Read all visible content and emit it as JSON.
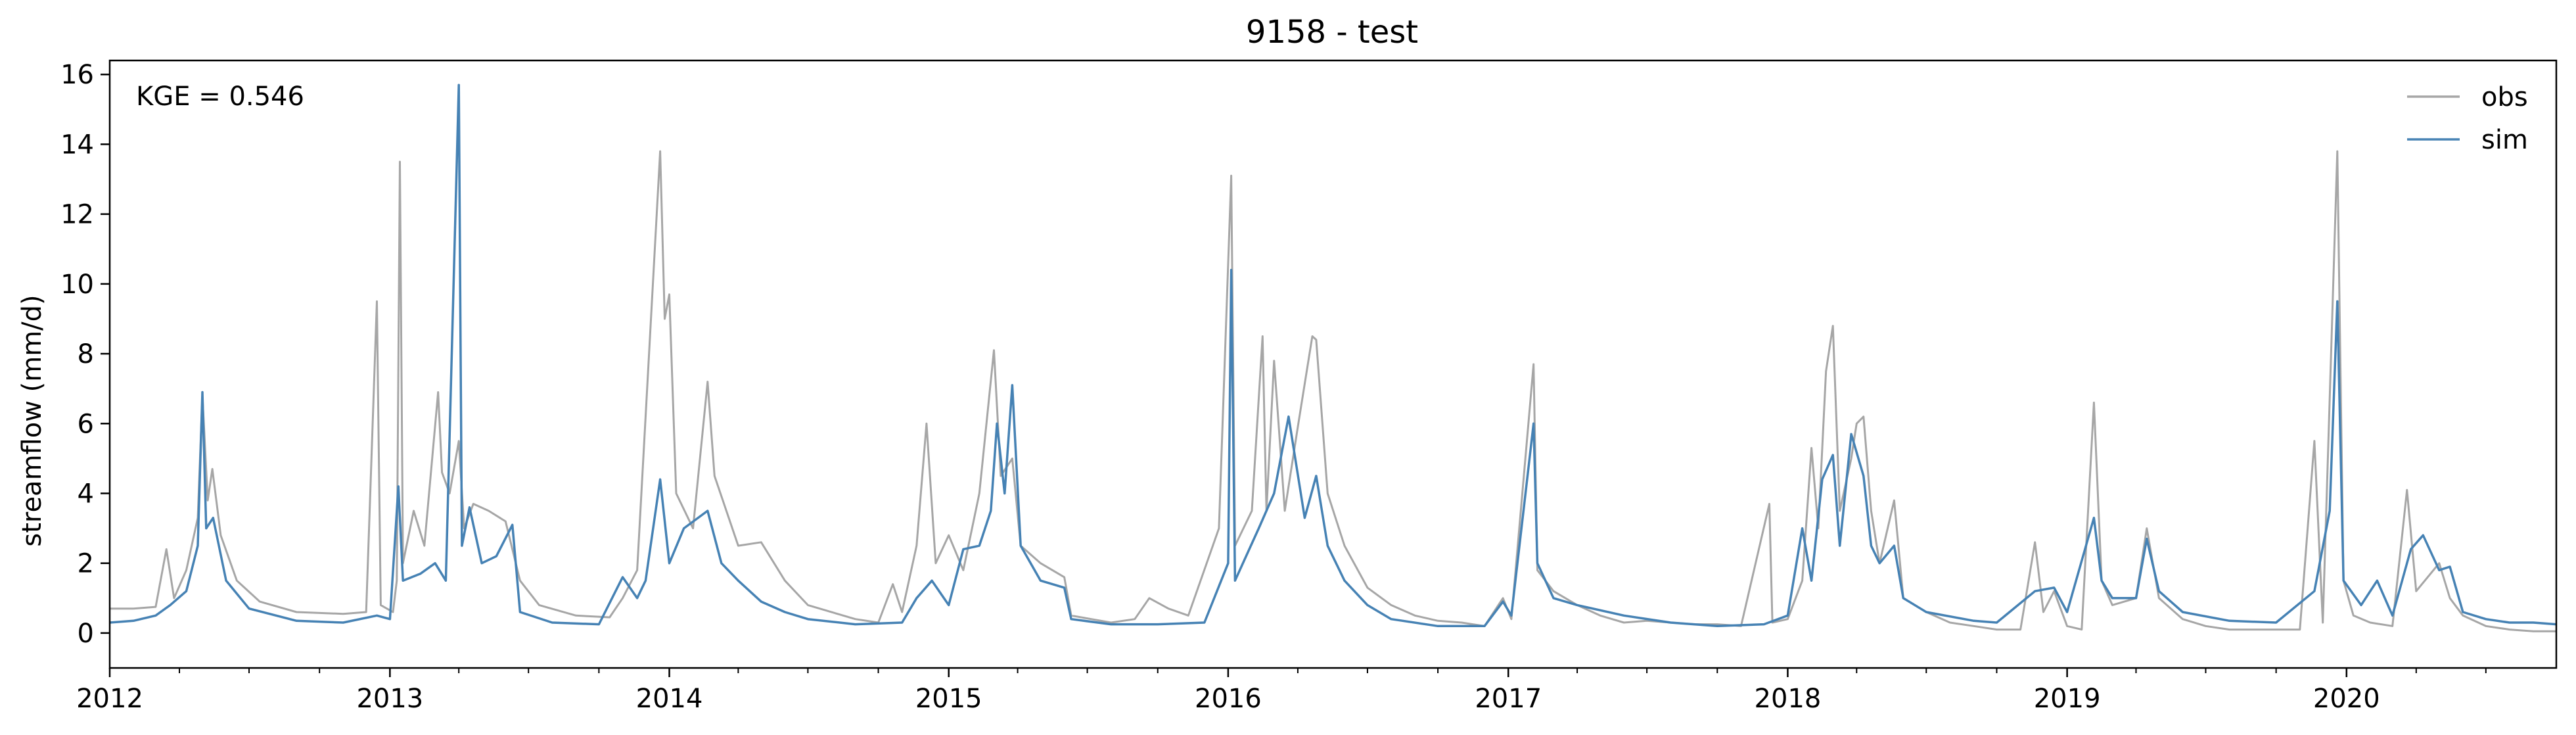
{
  "chart_data": {
    "type": "line",
    "title": "9158 - test",
    "xlabel": "",
    "ylabel": "streamflow (mm/d)",
    "annotation": "KGE = 0.546",
    "xlim": [
      "2012-01-01",
      "2020-10-01"
    ],
    "ylim": [
      -1,
      16.4
    ],
    "x_ticks": [
      "2012",
      "2013",
      "2014",
      "2015",
      "2016",
      "2017",
      "2018",
      "2019",
      "2020"
    ],
    "y_ticks": [
      "0",
      "2",
      "4",
      "6",
      "8",
      "10",
      "12",
      "14",
      "16"
    ],
    "grid": false,
    "legend_position": "top-right",
    "series": [
      {
        "name": "obs",
        "color": "#a6a6a6",
        "points": [
          [
            "2012-01-01",
            0.7
          ],
          [
            "2012-02-01",
            0.7
          ],
          [
            "2012-03-01",
            0.75
          ],
          [
            "2012-03-15",
            2.4
          ],
          [
            "2012-03-25",
            1.0
          ],
          [
            "2012-04-10",
            1.8
          ],
          [
            "2012-04-25",
            3.3
          ],
          [
            "2012-05-01",
            6.8
          ],
          [
            "2012-05-08",
            3.8
          ],
          [
            "2012-05-14",
            4.7
          ],
          [
            "2012-05-25",
            2.8
          ],
          [
            "2012-06-15",
            1.5
          ],
          [
            "2012-07-15",
            0.9
          ],
          [
            "2012-09-01",
            0.6
          ],
          [
            "2012-11-01",
            0.55
          ],
          [
            "2012-12-01",
            0.6
          ],
          [
            "2012-12-15",
            9.5
          ],
          [
            "2012-12-20",
            0.8
          ],
          [
            "2013-01-05",
            0.6
          ],
          [
            "2013-01-10",
            1.5
          ],
          [
            "2013-01-14",
            13.5
          ],
          [
            "2013-01-18",
            2.0
          ],
          [
            "2013-02-01",
            3.5
          ],
          [
            "2013-02-15",
            2.5
          ],
          [
            "2013-03-05",
            6.9
          ],
          [
            "2013-03-10",
            4.6
          ],
          [
            "2013-03-20",
            4.0
          ],
          [
            "2013-04-01",
            5.5
          ],
          [
            "2013-04-08",
            3.0
          ],
          [
            "2013-04-20",
            3.7
          ],
          [
            "2013-05-10",
            3.5
          ],
          [
            "2013-06-01",
            3.2
          ],
          [
            "2013-06-20",
            1.5
          ],
          [
            "2013-07-15",
            0.8
          ],
          [
            "2013-09-01",
            0.5
          ],
          [
            "2013-10-15",
            0.45
          ],
          [
            "2013-11-01",
            1.0
          ],
          [
            "2013-11-20",
            1.8
          ],
          [
            "2013-12-20",
            13.8
          ],
          [
            "2013-12-26",
            9.0
          ],
          [
            "2014-01-01",
            9.7
          ],
          [
            "2014-01-10",
            4.0
          ],
          [
            "2014-02-01",
            3.0
          ],
          [
            "2014-02-20",
            7.2
          ],
          [
            "2014-03-01",
            4.5
          ],
          [
            "2014-04-01",
            2.5
          ],
          [
            "2014-05-01",
            2.6
          ],
          [
            "2014-06-01",
            1.5
          ],
          [
            "2014-07-01",
            0.8
          ],
          [
            "2014-09-01",
            0.4
          ],
          [
            "2014-10-01",
            0.3
          ],
          [
            "2014-10-20",
            1.4
          ],
          [
            "2014-11-01",
            0.6
          ],
          [
            "2014-11-20",
            2.5
          ],
          [
            "2014-12-03",
            6.0
          ],
          [
            "2014-12-15",
            2.0
          ],
          [
            "2015-01-01",
            2.8
          ],
          [
            "2015-01-20",
            1.8
          ],
          [
            "2015-02-10",
            4.0
          ],
          [
            "2015-03-01",
            8.1
          ],
          [
            "2015-03-10",
            4.5
          ],
          [
            "2015-03-25",
            5.0
          ],
          [
            "2015-04-05",
            2.5
          ],
          [
            "2015-05-01",
            2.0
          ],
          [
            "2015-06-01",
            1.6
          ],
          [
            "2015-06-10",
            0.5
          ],
          [
            "2015-08-01",
            0.3
          ],
          [
            "2015-09-01",
            0.4
          ],
          [
            "2015-09-20",
            1.0
          ],
          [
            "2015-10-15",
            0.7
          ],
          [
            "2015-11-10",
            0.5
          ],
          [
            "2015-12-20",
            3.0
          ],
          [
            "2016-01-05",
            13.1
          ],
          [
            "2016-01-10",
            2.5
          ],
          [
            "2016-02-01",
            3.5
          ],
          [
            "2016-02-15",
            8.5
          ],
          [
            "2016-02-20",
            3.5
          ],
          [
            "2016-03-01",
            7.8
          ],
          [
            "2016-03-15",
            3.5
          ],
          [
            "2016-04-01",
            5.9
          ],
          [
            "2016-04-20",
            8.5
          ],
          [
            "2016-04-25",
            8.4
          ],
          [
            "2016-05-10",
            4.0
          ],
          [
            "2016-06-01",
            2.5
          ],
          [
            "2016-07-01",
            1.3
          ],
          [
            "2016-08-01",
            0.8
          ],
          [
            "2016-09-01",
            0.5
          ],
          [
            "2016-10-01",
            0.35
          ],
          [
            "2016-11-01",
            0.3
          ],
          [
            "2016-12-01",
            0.2
          ],
          [
            "2016-12-25",
            1.0
          ],
          [
            "2017-01-05",
            0.4
          ],
          [
            "2017-02-03",
            7.7
          ],
          [
            "2017-02-08",
            1.8
          ],
          [
            "2017-03-01",
            1.2
          ],
          [
            "2017-04-01",
            0.8
          ],
          [
            "2017-05-01",
            0.5
          ],
          [
            "2017-06-01",
            0.3
          ],
          [
            "2017-07-01",
            0.35
          ],
          [
            "2017-08-01",
            0.3
          ],
          [
            "2017-09-01",
            0.25
          ],
          [
            "2017-10-01",
            0.25
          ],
          [
            "2017-11-01",
            0.2
          ],
          [
            "2017-12-08",
            3.7
          ],
          [
            "2017-12-12",
            0.3
          ],
          [
            "2018-01-01",
            0.4
          ],
          [
            "2018-01-20",
            1.5
          ],
          [
            "2018-02-01",
            5.3
          ],
          [
            "2018-02-10",
            3.0
          ],
          [
            "2018-02-20",
            7.5
          ],
          [
            "2018-03-01",
            8.8
          ],
          [
            "2018-03-10",
            3.5
          ],
          [
            "2018-03-25",
            5.0
          ],
          [
            "2018-04-01",
            6.0
          ],
          [
            "2018-04-10",
            6.2
          ],
          [
            "2018-04-20",
            3.5
          ],
          [
            "2018-05-01",
            2.0
          ],
          [
            "2018-05-20",
            3.8
          ],
          [
            "2018-06-01",
            1.0
          ],
          [
            "2018-07-01",
            0.6
          ],
          [
            "2018-08-01",
            0.3
          ],
          [
            "2018-09-01",
            0.2
          ],
          [
            "2018-10-01",
            0.1
          ],
          [
            "2018-11-01",
            0.1
          ],
          [
            "2018-11-20",
            2.6
          ],
          [
            "2018-12-01",
            0.6
          ],
          [
            "2018-12-15",
            1.2
          ],
          [
            "2019-01-01",
            0.2
          ],
          [
            "2019-01-20",
            0.1
          ],
          [
            "2019-02-05",
            6.6
          ],
          [
            "2019-02-15",
            1.5
          ],
          [
            "2019-03-01",
            0.8
          ],
          [
            "2019-04-01",
            1.0
          ],
          [
            "2019-04-15",
            3.0
          ],
          [
            "2019-05-01",
            1.0
          ],
          [
            "2019-06-01",
            0.4
          ],
          [
            "2019-07-01",
            0.2
          ],
          [
            "2019-08-01",
            0.1
          ],
          [
            "2019-09-01",
            0.1
          ],
          [
            "2019-10-01",
            0.1
          ],
          [
            "2019-11-01",
            0.1
          ],
          [
            "2019-11-20",
            5.5
          ],
          [
            "2019-12-01",
            0.3
          ],
          [
            "2019-12-20",
            13.8
          ],
          [
            "2019-12-28",
            1.5
          ],
          [
            "2020-01-10",
            0.5
          ],
          [
            "2020-02-01",
            0.3
          ],
          [
            "2020-03-01",
            0.2
          ],
          [
            "2020-03-20",
            4.1
          ],
          [
            "2020-04-01",
            1.2
          ],
          [
            "2020-05-01",
            2.0
          ],
          [
            "2020-05-15",
            1.0
          ],
          [
            "2020-06-01",
            0.5
          ],
          [
            "2020-07-01",
            0.2
          ],
          [
            "2020-08-01",
            0.1
          ],
          [
            "2020-09-01",
            0.05
          ],
          [
            "2020-10-01",
            0.05
          ]
        ]
      },
      {
        "name": "sim",
        "color": "#4682b4",
        "points": [
          [
            "2012-01-01",
            0.3
          ],
          [
            "2012-02-01",
            0.35
          ],
          [
            "2012-03-01",
            0.5
          ],
          [
            "2012-03-20",
            0.8
          ],
          [
            "2012-04-10",
            1.2
          ],
          [
            "2012-04-25",
            2.5
          ],
          [
            "2012-05-01",
            6.9
          ],
          [
            "2012-05-06",
            3.0
          ],
          [
            "2012-05-15",
            3.3
          ],
          [
            "2012-06-01",
            1.5
          ],
          [
            "2012-07-01",
            0.7
          ],
          [
            "2012-09-01",
            0.35
          ],
          [
            "2012-11-01",
            0.3
          ],
          [
            "2012-12-15",
            0.5
          ],
          [
            "2013-01-01",
            0.4
          ],
          [
            "2013-01-12",
            4.2
          ],
          [
            "2013-01-18",
            1.5
          ],
          [
            "2013-02-10",
            1.7
          ],
          [
            "2013-03-01",
            2.0
          ],
          [
            "2013-03-15",
            1.5
          ],
          [
            "2013-04-01",
            15.7
          ],
          [
            "2013-04-05",
            2.5
          ],
          [
            "2013-04-15",
            3.6
          ],
          [
            "2013-05-01",
            2.0
          ],
          [
            "2013-05-20",
            2.2
          ],
          [
            "2013-06-10",
            3.1
          ],
          [
            "2013-06-20",
            0.6
          ],
          [
            "2013-08-01",
            0.3
          ],
          [
            "2013-10-01",
            0.25
          ],
          [
            "2013-11-01",
            1.6
          ],
          [
            "2013-11-20",
            1.0
          ],
          [
            "2013-12-01",
            1.5
          ],
          [
            "2013-12-20",
            4.4
          ],
          [
            "2014-01-01",
            2.0
          ],
          [
            "2014-01-20",
            3.0
          ],
          [
            "2014-02-20",
            3.5
          ],
          [
            "2014-03-10",
            2.0
          ],
          [
            "2014-04-01",
            1.5
          ],
          [
            "2014-05-01",
            0.9
          ],
          [
            "2014-06-01",
            0.6
          ],
          [
            "2014-07-01",
            0.4
          ],
          [
            "2014-09-01",
            0.25
          ],
          [
            "2014-11-01",
            0.3
          ],
          [
            "2014-11-20",
            1.0
          ],
          [
            "2014-12-10",
            1.5
          ],
          [
            "2015-01-01",
            0.8
          ],
          [
            "2015-01-20",
            2.4
          ],
          [
            "2015-02-10",
            2.5
          ],
          [
            "2015-02-25",
            3.5
          ],
          [
            "2015-03-05",
            6.0
          ],
          [
            "2015-03-15",
            4.0
          ],
          [
            "2015-03-25",
            7.1
          ],
          [
            "2015-04-05",
            2.5
          ],
          [
            "2015-05-01",
            1.5
          ],
          [
            "2015-06-01",
            1.3
          ],
          [
            "2015-06-10",
            0.4
          ],
          [
            "2015-08-01",
            0.25
          ],
          [
            "2015-10-01",
            0.25
          ],
          [
            "2015-12-01",
            0.3
          ],
          [
            "2016-01-01",
            2.0
          ],
          [
            "2016-01-05",
            10.4
          ],
          [
            "2016-01-10",
            1.5
          ],
          [
            "2016-02-10",
            3.0
          ],
          [
            "2016-03-01",
            4.0
          ],
          [
            "2016-03-20",
            6.2
          ],
          [
            "2016-04-10",
            3.3
          ],
          [
            "2016-04-25",
            4.5
          ],
          [
            "2016-05-10",
            2.5
          ],
          [
            "2016-06-01",
            1.5
          ],
          [
            "2016-07-01",
            0.8
          ],
          [
            "2016-08-01",
            0.4
          ],
          [
            "2016-10-01",
            0.2
          ],
          [
            "2016-12-01",
            0.2
          ],
          [
            "2016-12-25",
            0.9
          ],
          [
            "2017-01-05",
            0.5
          ],
          [
            "2017-02-03",
            6.0
          ],
          [
            "2017-02-08",
            2.0
          ],
          [
            "2017-03-01",
            1.0
          ],
          [
            "2017-04-01",
            0.8
          ],
          [
            "2017-06-01",
            0.5
          ],
          [
            "2017-08-01",
            0.3
          ],
          [
            "2017-10-01",
            0.2
          ],
          [
            "2017-12-01",
            0.25
          ],
          [
            "2018-01-01",
            0.5
          ],
          [
            "2018-01-20",
            3.0
          ],
          [
            "2018-02-01",
            1.5
          ],
          [
            "2018-02-15",
            4.4
          ],
          [
            "2018-03-01",
            5.1
          ],
          [
            "2018-03-10",
            2.5
          ],
          [
            "2018-03-25",
            5.7
          ],
          [
            "2018-04-10",
            4.5
          ],
          [
            "2018-04-20",
            2.5
          ],
          [
            "2018-05-01",
            2.0
          ],
          [
            "2018-05-20",
            2.5
          ],
          [
            "2018-06-01",
            1.0
          ],
          [
            "2018-07-01",
            0.6
          ],
          [
            "2018-09-01",
            0.35
          ],
          [
            "2018-10-01",
            0.3
          ],
          [
            "2018-11-20",
            1.2
          ],
          [
            "2018-12-15",
            1.3
          ],
          [
            "2019-01-01",
            0.6
          ],
          [
            "2019-02-05",
            3.3
          ],
          [
            "2019-02-15",
            1.5
          ],
          [
            "2019-03-01",
            1.0
          ],
          [
            "2019-04-01",
            1.0
          ],
          [
            "2019-04-15",
            2.7
          ],
          [
            "2019-05-01",
            1.2
          ],
          [
            "2019-06-01",
            0.6
          ],
          [
            "2019-08-01",
            0.35
          ],
          [
            "2019-10-01",
            0.3
          ],
          [
            "2019-11-20",
            1.2
          ],
          [
            "2019-12-10",
            3.5
          ],
          [
            "2019-12-20",
            9.5
          ],
          [
            "2019-12-28",
            1.5
          ],
          [
            "2020-01-20",
            0.8
          ],
          [
            "2020-02-10",
            1.5
          ],
          [
            "2020-03-01",
            0.5
          ],
          [
            "2020-03-25",
            2.4
          ],
          [
            "2020-04-10",
            2.8
          ],
          [
            "2020-05-01",
            1.8
          ],
          [
            "2020-05-15",
            1.9
          ],
          [
            "2020-06-01",
            0.6
          ],
          [
            "2020-07-01",
            0.4
          ],
          [
            "2020-08-01",
            0.3
          ],
          [
            "2020-09-01",
            0.3
          ],
          [
            "2020-10-01",
            0.25
          ]
        ]
      }
    ]
  }
}
